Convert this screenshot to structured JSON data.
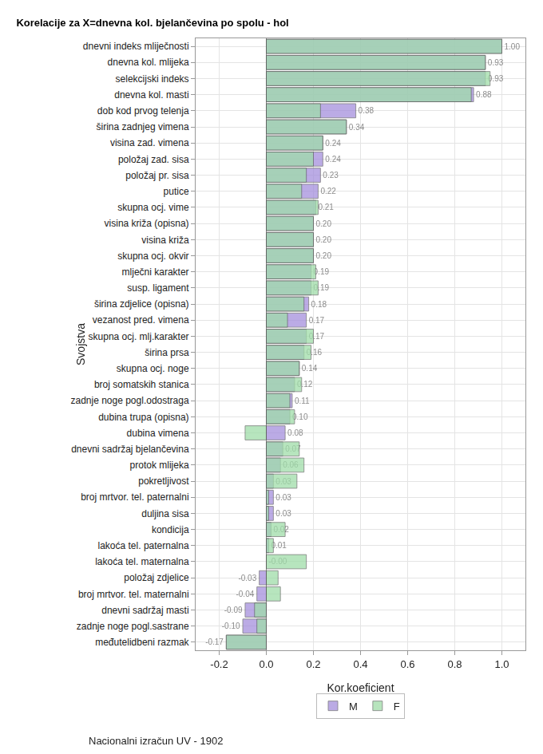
{
  "chart_data": {
    "type": "bar",
    "orientation": "horizontal",
    "title": "Korelacije za X=dnevna kol. bjelančevina po spolu - hol",
    "x_label": "Kor.koeficient",
    "y_label": "Svojstva",
    "footnote": "Nacionalni izračun UV - 1902",
    "grid": true,
    "legend": "bottom",
    "xlim": [
      -0.3,
      1.1
    ],
    "xticks": [
      -0.2,
      {
        "value": 0,
        "label": "0.0"
      },
      0.2,
      0.4,
      0.6,
      0.8,
      {
        "value": 1,
        "label": "1.0"
      }
    ],
    "categories": [
      "dnevni indeks mliječnosti",
      "dnevna kol. mlijeka",
      "selekcijski indeks",
      "dnevna kol. masti",
      "dob kod prvog telenja",
      "širina zadnjeg vimena",
      "visina zad. vimena",
      "položaj zad. sisa",
      "položaj pr. sisa",
      "putice",
      "skupna ocj. vime",
      "visina križa (opisna)",
      "visina križa",
      "skupna ocj. okvir",
      "mlječni karakter",
      "susp. ligament",
      "širina zdjelice (opisna)",
      "vezanost pred. vimena",
      "skupna ocj. mlj.karakter",
      "širina prsa",
      "skupna ocj. noge",
      "broj somatskih stanica",
      "zadnje noge pogl.odostraga",
      "dubina trupa (opisna)",
      "dubina vimena",
      "dnevni sadržaj bjelančevina",
      "protok mlijeka",
      "pokretljivost",
      "broj mrtvor. tel. paternalni",
      "duljina sisa",
      "kondicija",
      "lakoća tel. paternalna",
      "lakoća tel. maternalna",
      "položaj zdjelice",
      "broj mrtvor. tel. maternalni",
      "dnevni sadržaj masti",
      "zadnje noge pogl.sastrane",
      "međutelidbeni razmak"
    ],
    "series": [
      {
        "name": "M",
        "color": "#a58fdc",
        "data_labels": true,
        "values": [
          1.0,
          0.93,
          0.93,
          0.88,
          0.38,
          0.34,
          0.24,
          0.24,
          0.23,
          0.22,
          0.21,
          0.2,
          0.2,
          0.2,
          0.19,
          0.19,
          0.18,
          0.17,
          0.17,
          0.16,
          0.14,
          0.12,
          0.11,
          0.1,
          0.08,
          0.07,
          0.06,
          0.03,
          0.03,
          0.03,
          0.02,
          0.01,
          0.0,
          -0.03,
          -0.04,
          -0.09,
          -0.1,
          -0.17
        ],
        "value_labels": [
          "1.00",
          "0.93",
          "0.93",
          "0.88",
          "0.38",
          "0.34",
          "0.24",
          "0.24",
          "0.23",
          "0.22",
          "0.21",
          "0.20",
          "0.20",
          "0.20",
          "0.19",
          "0.19",
          "0.18",
          "0.17",
          "0.17",
          "0.16",
          "0.14",
          "0.12",
          "0.11",
          "0.10",
          "0.08",
          "0.07",
          "0.06",
          "0.03",
          "0.03",
          "0.03",
          "0.02",
          "0.01",
          "-0.00",
          "-0.03",
          "-0.04",
          "-0.09",
          "-0.10",
          "-0.17"
        ]
      },
      {
        "name": "F",
        "color": "#9fdca8",
        "data_labels": false,
        "values": [
          1.0,
          0.93,
          0.95,
          0.87,
          0.23,
          0.34,
          0.24,
          0.2,
          0.17,
          0.15,
          0.22,
          0.2,
          0.2,
          0.2,
          0.21,
          0.22,
          0.16,
          0.09,
          0.2,
          0.19,
          0.14,
          0.15,
          0.1,
          0.12,
          -0.09,
          0.14,
          0.16,
          0.13,
          0.01,
          0.01,
          0.08,
          0.03,
          0.17,
          0.05,
          0.06,
          -0.05,
          -0.04,
          -0.17
        ]
      }
    ]
  }
}
